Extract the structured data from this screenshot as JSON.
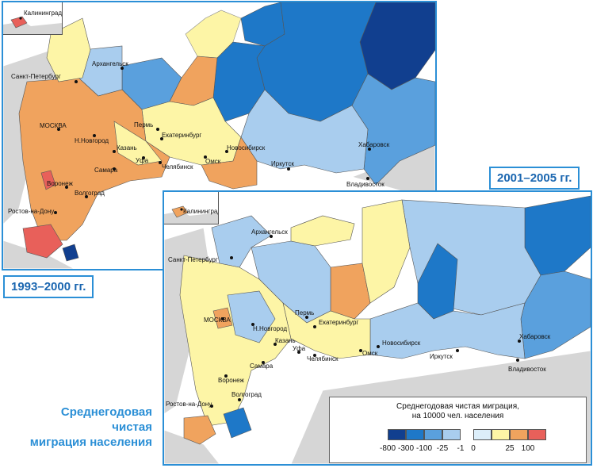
{
  "title": {
    "lines": [
      "Среднегодовая",
      "чистая",
      "миграция населения"
    ]
  },
  "maps": [
    {
      "period": "1993–2000 гг.",
      "inset_label": "Калининград",
      "cities": [
        "Калининград",
        "Санкт-Петербург",
        "Архангельск",
        "МОСКВА",
        "Н.Новгород",
        "Пермь",
        "Екатеринбург",
        "Казань",
        "Уфа",
        "Челябинск",
        "Омск",
        "Новосибирск",
        "Самара",
        "Воронеж",
        "Волгоград",
        "Ростов-на-Дону",
        "Иркутск",
        "Хабаровск",
        "Владивосток"
      ]
    },
    {
      "period": "2001–2005 гг.",
      "inset_label": "Калининград",
      "cities": [
        "Калининград",
        "Санкт-Петербург",
        "Архангельск",
        "МОСКВА",
        "Н.Новгород",
        "Пермь",
        "Екатеринбург",
        "Казань",
        "Уфа",
        "Челябинск",
        "Омск",
        "Новосибирск",
        "Самара",
        "Воронеж",
        "Волгоград",
        "Ростов-на-Дону",
        "Иркутск",
        "Хабаровск",
        "Владивосток"
      ]
    }
  ],
  "legend": {
    "title_line1": "Среднегодовая чистая миграция,",
    "title_line2": "на 10000 чел. населения",
    "ticks": [
      "-800",
      "-300",
      "-100",
      "-25",
      "-1",
      "0",
      "25",
      "100"
    ],
    "colors": [
      "#113f8f",
      "#1e78c8",
      "#5aa0dd",
      "#a9cdee",
      "#dceefa",
      "#fdf5a6",
      "#f0a35e",
      "#e8605a"
    ]
  },
  "colors": {
    "frame_blue": "#2b8fd6",
    "neighbors_gray": "#d6d6d6",
    "sea": "#ffffff"
  }
}
